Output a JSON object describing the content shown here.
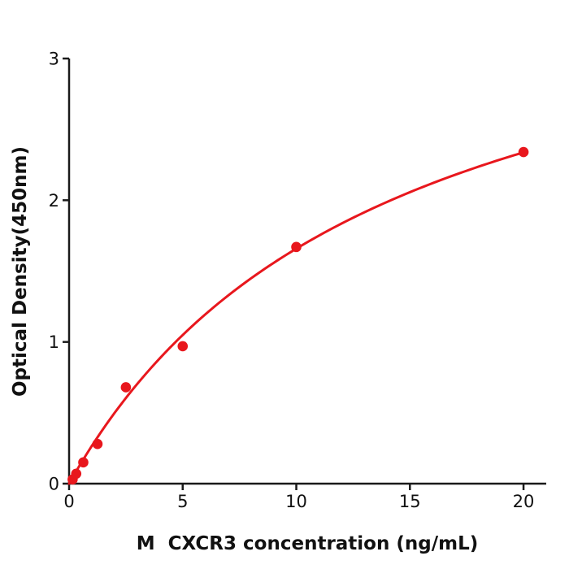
{
  "figure": {
    "background_color": "#ffffff",
    "axis_color": "#1a1a1a",
    "series_color": "#e8171d"
  },
  "chart_data": {
    "type": "scatter",
    "title": "",
    "xlabel": "M  CXCR3 concentration (ng/mL)",
    "ylabel": "Optical Density(450nm)",
    "xlim": [
      0,
      21
    ],
    "ylim": [
      0,
      3
    ],
    "x_ticks": [
      0,
      5,
      10,
      15,
      20
    ],
    "y_ticks": [
      0,
      1,
      2,
      3
    ],
    "grid": false,
    "legend": "none",
    "points": [
      {
        "x": 0.156,
        "y": 0.03
      },
      {
        "x": 0.313,
        "y": 0.07
      },
      {
        "x": 0.625,
        "y": 0.15
      },
      {
        "x": 1.25,
        "y": 0.28
      },
      {
        "x": 2.5,
        "y": 0.68
      },
      {
        "x": 5,
        "y": 0.97
      },
      {
        "x": 10,
        "y": 1.67
      },
      {
        "x": 20,
        "y": 2.34
      }
    ],
    "fit_curve": {
      "model": "saturation (y = a*x / (b + x))",
      "a": 3.96,
      "b": 13.88,
      "x_start": 0,
      "x_end": 20
    }
  }
}
